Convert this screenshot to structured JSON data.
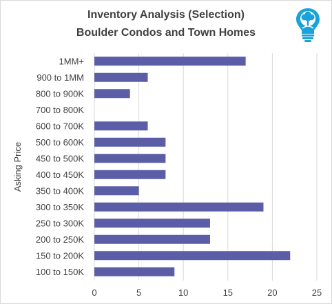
{
  "chart_data": {
    "type": "bar",
    "orientation": "horizontal",
    "title": "Inventory Analysis (Selection)",
    "subtitle": "Boulder Condos and Town Homes",
    "ylabel": "Asking Price",
    "xlabel": "",
    "categories": [
      "1MM+",
      "900 to 1MM",
      "800 to 900K",
      "700 to 800K",
      "600 to 700K",
      "500 to 600K",
      "450 to 500K",
      "400 to 450K",
      "350 to 400K",
      "300 to 350K",
      "250 to 300K",
      "200 to 250K",
      "150 to 200K",
      "100 to 150K"
    ],
    "values": [
      17,
      6,
      4,
      0,
      6,
      8,
      8,
      8,
      5,
      19,
      13,
      13,
      22,
      9
    ],
    "xlim": [
      0,
      25
    ],
    "xticks": [
      0,
      5,
      10,
      15,
      20,
      25
    ],
    "grid": true,
    "bar_color": "#5b5ea6"
  },
  "logo": {
    "name": "lightbulb-tree-logo",
    "color": "#1aa3d9"
  }
}
